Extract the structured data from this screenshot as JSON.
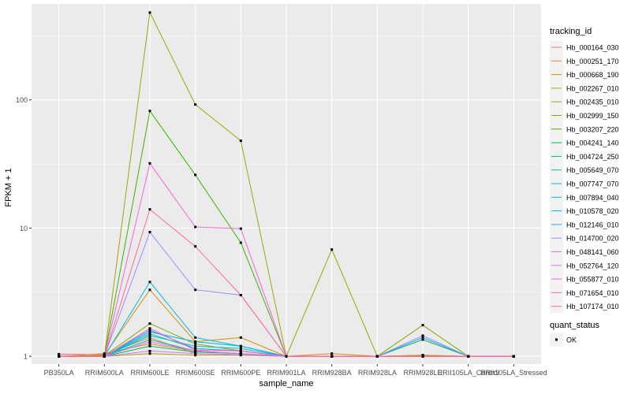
{
  "chart_data": {
    "type": "line",
    "xlabel": "sample_name",
    "ylabel": "FPKM + 1",
    "y_scale": "log10",
    "ylim": [
      0.87,
      560
    ],
    "y_ticks": [
      {
        "value": 1,
        "label": "1"
      },
      {
        "value": 10,
        "label": "10"
      },
      {
        "value": 100,
        "label": "100"
      }
    ],
    "categories": [
      "PB350LA",
      "RRIM600LA",
      "RRIM600LE",
      "RRIM600SE",
      "RRIM600PE",
      "RRIM901LA",
      "RRIM928BA",
      "RRIM928LA",
      "RRIM928LE",
      "RRII105LA_Control",
      "RRII105LA_Stressed"
    ],
    "legend_title": "tracking_id",
    "series": [
      {
        "name": "Hb_000164_030",
        "color": "#F8766D",
        "values": [
          1.04,
          1.03,
          1.4,
          1.05,
          1.03,
          1.0,
          1.0,
          1.0,
          1.0,
          1.0,
          1.0
        ]
      },
      {
        "name": "Hb_000251_170",
        "color": "#EA8331",
        "values": [
          1.0,
          1.05,
          1.25,
          1.1,
          1.05,
          1.0,
          1.0,
          1.0,
          1.0,
          1.0,
          1.0
        ]
      },
      {
        "name": "Hb_000668_190",
        "color": "#D89000",
        "values": [
          1.0,
          1.02,
          3.3,
          1.3,
          1.4,
          1.0,
          1.05,
          1.0,
          1.02,
          1.0,
          1.0
        ]
      },
      {
        "name": "Hb_002267_010",
        "color": "#C09B00",
        "values": [
          1.0,
          1.0,
          1.05,
          1.02,
          1.02,
          1.0,
          1.0,
          1.0,
          1.0,
          1.0,
          1.0
        ]
      },
      {
        "name": "Hb_002435_010",
        "color": "#A3A500",
        "values": [
          1.0,
          1.0,
          480,
          92,
          48,
          1.0,
          6.8,
          1.0,
          1.02,
          1.0,
          1.0
        ]
      },
      {
        "name": "Hb_002999_150",
        "color": "#7CAE00",
        "values": [
          1.0,
          1.01,
          1.8,
          1.25,
          1.1,
          1.0,
          1.0,
          1.0,
          1.75,
          1.0,
          1.0
        ]
      },
      {
        "name": "Hb_003207_220",
        "color": "#39B600",
        "values": [
          1.0,
          1.0,
          82,
          26,
          7.7,
          1.0,
          1.0,
          1.0,
          1.0,
          1.0,
          1.0
        ]
      },
      {
        "name": "Hb_004241_140",
        "color": "#00BB4E",
        "values": [
          1.0,
          1.0,
          1.2,
          1.08,
          1.05,
          1.0,
          1.0,
          1.0,
          1.35,
          1.0,
          1.0
        ]
      },
      {
        "name": "Hb_004724_250",
        "color": "#00BF7D",
        "values": [
          1.0,
          1.0,
          1.35,
          1.1,
          1.05,
          1.0,
          1.0,
          1.0,
          1.0,
          1.0,
          1.0
        ]
      },
      {
        "name": "Hb_005649_070",
        "color": "#00C1A3",
        "values": [
          1.0,
          1.0,
          1.5,
          1.15,
          1.1,
          1.0,
          1.0,
          1.0,
          1.0,
          1.0,
          1.0
        ]
      },
      {
        "name": "Hb_007747_070",
        "color": "#00BFC4",
        "values": [
          1.0,
          1.0,
          1.45,
          1.2,
          1.15,
          1.0,
          1.0,
          1.0,
          1.0,
          1.0,
          1.0
        ]
      },
      {
        "name": "Hb_007894_040",
        "color": "#00BAE0",
        "values": [
          1.0,
          1.0,
          3.8,
          1.4,
          1.2,
          1.0,
          1.0,
          1.0,
          1.0,
          1.0,
          1.0
        ]
      },
      {
        "name": "Hb_010578_020",
        "color": "#00B0F6",
        "values": [
          1.0,
          1.0,
          1.55,
          1.3,
          1.2,
          1.0,
          1.0,
          1.0,
          1.0,
          1.0,
          1.0
        ]
      },
      {
        "name": "Hb_012146_010",
        "color": "#35A2FF",
        "values": [
          1.0,
          1.0,
          1.6,
          1.15,
          1.1,
          1.0,
          1.0,
          1.0,
          1.4,
          1.0,
          1.0
        ]
      },
      {
        "name": "Hb_014700_020",
        "color": "#9590FF",
        "values": [
          1.0,
          1.0,
          9.3,
          3.3,
          3.0,
          1.0,
          1.0,
          1.0,
          1.45,
          1.0,
          1.0
        ]
      },
      {
        "name": "Hb_048141_060",
        "color": "#C77CFF",
        "values": [
          1.0,
          1.0,
          1.1,
          1.05,
          1.03,
          1.0,
          1.0,
          1.0,
          1.0,
          1.0,
          1.0
        ]
      },
      {
        "name": "Hb_052764_120",
        "color": "#E76BF3",
        "values": [
          1.0,
          1.0,
          1.3,
          1.1,
          1.05,
          1.0,
          1.0,
          1.0,
          1.0,
          1.0,
          1.0
        ]
      },
      {
        "name": "Hb_055877_010",
        "color": "#FA62DB",
        "values": [
          1.0,
          1.0,
          32,
          10.2,
          9.9,
          1.0,
          1.0,
          1.0,
          1.0,
          1.0,
          1.0
        ]
      },
      {
        "name": "Hb_071654_010",
        "color": "#FF62BC",
        "values": [
          1.0,
          1.0,
          1.65,
          1.12,
          1.1,
          1.0,
          1.0,
          1.0,
          1.0,
          1.0,
          1.0
        ]
      },
      {
        "name": "Hb_107174_010",
        "color": "#FF6C91",
        "values": [
          1.0,
          1.0,
          14,
          7.2,
          3.0,
          1.0,
          1.0,
          1.0,
          1.0,
          1.0,
          1.0
        ]
      }
    ],
    "shape_legend_title": "quant_status",
    "shape_legend_entries": [
      "OK"
    ],
    "panel_color": "#EBEBEB",
    "grid_color": "#FFFFFF",
    "point_color": "#000000"
  }
}
